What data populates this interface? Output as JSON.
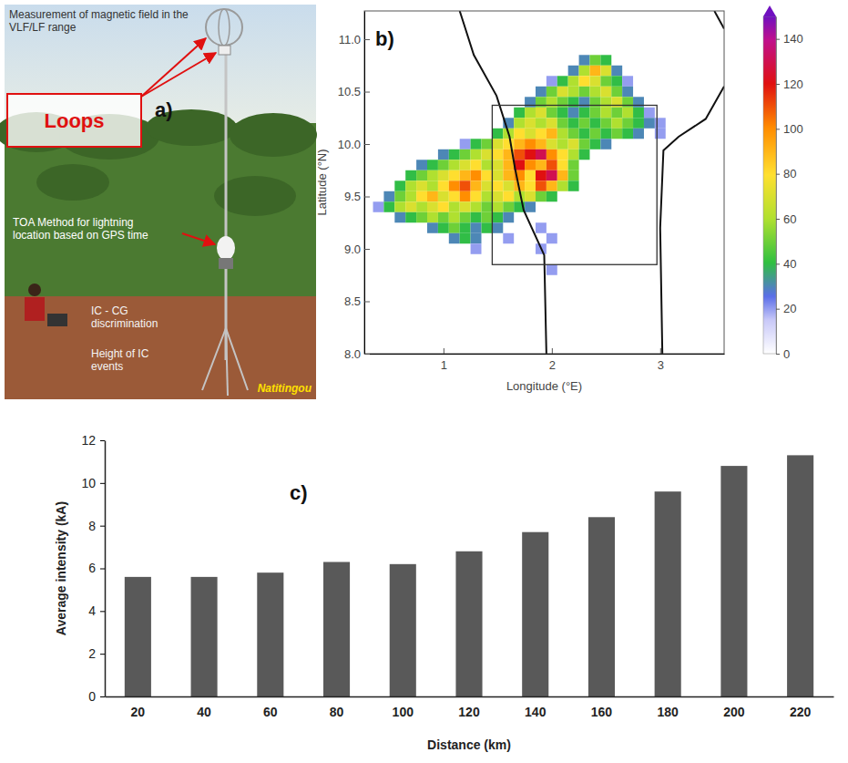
{
  "photo": {
    "panel": "a)",
    "callouts": [
      "Measurement of magnetic field in the VLF/LF range",
      "TOA Method for  lightning location based on GPS time",
      "IC - CG discrimination",
      "Height of IC events"
    ],
    "boxed_label": "Loops",
    "place": "Natitingou"
  },
  "chart_data": [
    {
      "type": "heatmap",
      "panel": "b)",
      "xlabel": "Longitude (°E)",
      "ylabel": "Latitude (°N)",
      "xlim": [
        0.27,
        3.59
      ],
      "ylim": [
        8.0,
        11.27
      ],
      "xticks": [
        1,
        2,
        3
      ],
      "yticks": [
        {
          "value": 8,
          "label": "8.0"
        },
        8.5,
        {
          "value": 9,
          "label": "9.0"
        },
        9.5,
        {
          "value": 10,
          "label": "10.0"
        },
        10.5,
        {
          "value": 11,
          "label": "11.0"
        }
      ],
      "cell_size": 0.1,
      "cells": [
        [
          2.3,
          10.8,
          30
        ],
        [
          2.4,
          10.8,
          50
        ],
        [
          2.5,
          10.8,
          40
        ],
        [
          2.2,
          10.7,
          30
        ],
        [
          2.3,
          10.7,
          60
        ],
        [
          2.4,
          10.7,
          90
        ],
        [
          2.5,
          10.7,
          70
        ],
        [
          2.6,
          10.7,
          30
        ],
        [
          2.0,
          10.6,
          20
        ],
        [
          2.1,
          10.6,
          40
        ],
        [
          2.2,
          10.6,
          60
        ],
        [
          2.3,
          10.6,
          80
        ],
        [
          2.4,
          10.6,
          70
        ],
        [
          2.5,
          10.6,
          50
        ],
        [
          2.6,
          10.6,
          40
        ],
        [
          2.7,
          10.6,
          20
        ],
        [
          1.9,
          10.5,
          30
        ],
        [
          2.0,
          10.5,
          50
        ],
        [
          2.1,
          10.5,
          70
        ],
        [
          2.2,
          10.5,
          60
        ],
        [
          2.3,
          10.5,
          50
        ],
        [
          2.4,
          10.5,
          60
        ],
        [
          2.5,
          10.5,
          70
        ],
        [
          2.6,
          10.5,
          50
        ],
        [
          2.7,
          10.5,
          30
        ],
        [
          1.8,
          10.4,
          30
        ],
        [
          1.9,
          10.4,
          50
        ],
        [
          2.0,
          10.4,
          60
        ],
        [
          2.1,
          10.4,
          50
        ],
        [
          2.2,
          10.4,
          40
        ],
        [
          2.3,
          10.4,
          30
        ],
        [
          2.4,
          10.4,
          50
        ],
        [
          2.5,
          10.4,
          60
        ],
        [
          2.6,
          10.4,
          70
        ],
        [
          2.7,
          10.4,
          50
        ],
        [
          2.8,
          10.4,
          30
        ],
        [
          1.7,
          10.3,
          40
        ],
        [
          1.8,
          10.3,
          60
        ],
        [
          1.9,
          10.3,
          70
        ],
        [
          2.0,
          10.3,
          50
        ],
        [
          2.1,
          10.3,
          40
        ],
        [
          2.2,
          10.3,
          30
        ],
        [
          2.3,
          10.3,
          40
        ],
        [
          2.4,
          10.3,
          50
        ],
        [
          2.5,
          10.3,
          60
        ],
        [
          2.6,
          10.3,
          50
        ],
        [
          2.7,
          10.3,
          60
        ],
        [
          2.8,
          10.3,
          40
        ],
        [
          2.9,
          10.3,
          20
        ],
        [
          1.6,
          10.2,
          30
        ],
        [
          1.7,
          10.2,
          60
        ],
        [
          1.8,
          10.2,
          70
        ],
        [
          1.9,
          10.2,
          60
        ],
        [
          2.0,
          10.2,
          70
        ],
        [
          2.1,
          10.2,
          50
        ],
        [
          2.2,
          10.2,
          40
        ],
        [
          2.3,
          10.2,
          50
        ],
        [
          2.4,
          10.2,
          40
        ],
        [
          2.5,
          10.2,
          50
        ],
        [
          2.6,
          10.2,
          60
        ],
        [
          2.7,
          10.2,
          50
        ],
        [
          2.8,
          10.2,
          40
        ],
        [
          2.9,
          10.2,
          30
        ],
        [
          3.0,
          10.2,
          20
        ],
        [
          1.5,
          10.1,
          40
        ],
        [
          1.6,
          10.1,
          60
        ],
        [
          1.7,
          10.1,
          80
        ],
        [
          1.8,
          10.1,
          70
        ],
        [
          1.9,
          10.1,
          80
        ],
        [
          2.0,
          10.1,
          90
        ],
        [
          2.1,
          10.1,
          60
        ],
        [
          2.2,
          10.1,
          50
        ],
        [
          2.3,
          10.1,
          40
        ],
        [
          2.4,
          10.1,
          50
        ],
        [
          2.5,
          10.1,
          40
        ],
        [
          2.6,
          10.1,
          50
        ],
        [
          2.7,
          10.1,
          40
        ],
        [
          2.8,
          10.1,
          30
        ],
        [
          3.0,
          10.1,
          20
        ],
        [
          1.2,
          10.0,
          20
        ],
        [
          1.3,
          10.0,
          40
        ],
        [
          1.4,
          10.0,
          50
        ],
        [
          1.5,
          10.0,
          70
        ],
        [
          1.6,
          10.0,
          80
        ],
        [
          1.7,
          10.0,
          90
        ],
        [
          1.8,
          10.0,
          100
        ],
        [
          1.9,
          10.0,
          90
        ],
        [
          2.0,
          10.0,
          70
        ],
        [
          2.1,
          10.0,
          60
        ],
        [
          2.2,
          10.0,
          70
        ],
        [
          2.3,
          10.0,
          50
        ],
        [
          2.4,
          10.0,
          40
        ],
        [
          2.5,
          10.0,
          30
        ],
        [
          1.0,
          9.9,
          30
        ],
        [
          1.1,
          9.9,
          40
        ],
        [
          1.2,
          9.9,
          50
        ],
        [
          1.3,
          9.9,
          60
        ],
        [
          1.4,
          9.9,
          70
        ],
        [
          1.5,
          9.9,
          80
        ],
        [
          1.6,
          9.9,
          90
        ],
        [
          1.7,
          9.9,
          110
        ],
        [
          1.8,
          9.9,
          120
        ],
        [
          1.9,
          9.9,
          130
        ],
        [
          2.0,
          9.9,
          100
        ],
        [
          2.1,
          9.9,
          80
        ],
        [
          2.2,
          9.9,
          60
        ],
        [
          2.3,
          9.9,
          40
        ],
        [
          0.8,
          9.8,
          30
        ],
        [
          0.9,
          9.8,
          40
        ],
        [
          1.0,
          9.8,
          50
        ],
        [
          1.1,
          9.8,
          60
        ],
        [
          1.2,
          9.8,
          70
        ],
        [
          1.3,
          9.8,
          80
        ],
        [
          1.4,
          9.8,
          60
        ],
        [
          1.5,
          9.8,
          70
        ],
        [
          1.6,
          9.8,
          90
        ],
        [
          1.7,
          9.8,
          120
        ],
        [
          1.8,
          9.8,
          100
        ],
        [
          1.9,
          9.8,
          90
        ],
        [
          2.0,
          9.8,
          110
        ],
        [
          2.1,
          9.8,
          80
        ],
        [
          2.2,
          9.8,
          50
        ],
        [
          0.7,
          9.7,
          40
        ],
        [
          0.8,
          9.7,
          50
        ],
        [
          0.9,
          9.7,
          60
        ],
        [
          1.0,
          9.7,
          70
        ],
        [
          1.1,
          9.7,
          80
        ],
        [
          1.2,
          9.7,
          90
        ],
        [
          1.3,
          9.7,
          100
        ],
        [
          1.4,
          9.7,
          80
        ],
        [
          1.5,
          9.7,
          70
        ],
        [
          1.6,
          9.7,
          90
        ],
        [
          1.7,
          9.7,
          100
        ],
        [
          1.8,
          9.7,
          80
        ],
        [
          1.9,
          9.7,
          120
        ],
        [
          2.0,
          9.7,
          130
        ],
        [
          2.1,
          9.7,
          90
        ],
        [
          2.2,
          9.7,
          50
        ],
        [
          0.6,
          9.6,
          40
        ],
        [
          0.7,
          9.6,
          60
        ],
        [
          0.8,
          9.6,
          70
        ],
        [
          0.9,
          9.6,
          60
        ],
        [
          1.0,
          9.6,
          80
        ],
        [
          1.1,
          9.6,
          100
        ],
        [
          1.2,
          9.6,
          110
        ],
        [
          1.3,
          9.6,
          90
        ],
        [
          1.4,
          9.6,
          70
        ],
        [
          1.5,
          9.6,
          80
        ],
        [
          1.6,
          9.6,
          70
        ],
        [
          1.7,
          9.6,
          90
        ],
        [
          1.8,
          9.6,
          80
        ],
        [
          1.9,
          9.6,
          110
        ],
        [
          2.0,
          9.6,
          90
        ],
        [
          2.1,
          9.6,
          60
        ],
        [
          2.2,
          9.6,
          40
        ],
        [
          0.5,
          9.5,
          30
        ],
        [
          0.6,
          9.5,
          50
        ],
        [
          0.7,
          9.5,
          60
        ],
        [
          0.8,
          9.5,
          80
        ],
        [
          0.9,
          9.5,
          90
        ],
        [
          1.0,
          9.5,
          70
        ],
        [
          1.1,
          9.5,
          80
        ],
        [
          1.2,
          9.5,
          100
        ],
        [
          1.3,
          9.5,
          80
        ],
        [
          1.4,
          9.5,
          60
        ],
        [
          1.5,
          9.5,
          70
        ],
        [
          1.6,
          9.5,
          80
        ],
        [
          1.7,
          9.5,
          60
        ],
        [
          1.8,
          9.5,
          70
        ],
        [
          1.9,
          9.5,
          50
        ],
        [
          2.0,
          9.5,
          40
        ],
        [
          0.4,
          9.4,
          20
        ],
        [
          0.5,
          9.4,
          40
        ],
        [
          0.6,
          9.4,
          60
        ],
        [
          0.7,
          9.4,
          70
        ],
        [
          0.8,
          9.4,
          60
        ],
        [
          0.9,
          9.4,
          70
        ],
        [
          1.0,
          9.4,
          80
        ],
        [
          1.1,
          9.4,
          60
        ],
        [
          1.2,
          9.4,
          70
        ],
        [
          1.3,
          9.4,
          60
        ],
        [
          1.4,
          9.4,
          50
        ],
        [
          1.5,
          9.4,
          60
        ],
        [
          1.6,
          9.4,
          50
        ],
        [
          1.7,
          9.4,
          40
        ],
        [
          1.8,
          9.4,
          30
        ],
        [
          0.6,
          9.3,
          30
        ],
        [
          0.7,
          9.3,
          40
        ],
        [
          0.8,
          9.3,
          50
        ],
        [
          0.9,
          9.3,
          60
        ],
        [
          1.0,
          9.3,
          50
        ],
        [
          1.1,
          9.3,
          60
        ],
        [
          1.2,
          9.3,
          50
        ],
        [
          1.3,
          9.3,
          40
        ],
        [
          1.4,
          9.3,
          50
        ],
        [
          1.5,
          9.3,
          40
        ],
        [
          1.6,
          9.3,
          30
        ],
        [
          0.9,
          9.2,
          30
        ],
        [
          1.0,
          9.2,
          40
        ],
        [
          1.1,
          9.2,
          50
        ],
        [
          1.2,
          9.2,
          40
        ],
        [
          1.3,
          9.2,
          30
        ],
        [
          1.4,
          9.2,
          40
        ],
        [
          1.5,
          9.2,
          30
        ],
        [
          1.9,
          9.2,
          20
        ],
        [
          1.1,
          9.1,
          30
        ],
        [
          1.2,
          9.1,
          40
        ],
        [
          1.3,
          9.1,
          30
        ],
        [
          1.6,
          9.1,
          20
        ],
        [
          2.0,
          9.1,
          20
        ],
        [
          1.3,
          9.0,
          20
        ],
        [
          1.9,
          9.0,
          20
        ],
        [
          2.0,
          8.8,
          20
        ]
      ],
      "colorbar": {
        "range": [
          0,
          150
        ],
        "ticks": [
          0,
          20,
          40,
          60,
          80,
          100,
          120,
          140
        ]
      },
      "borders": [
        [
          [
            1.15,
            11.27
          ],
          [
            1.28,
            10.85
          ],
          [
            1.49,
            10.46
          ],
          [
            1.61,
            10.07
          ],
          [
            1.66,
            9.77
          ],
          [
            1.74,
            9.37
          ],
          [
            1.93,
            8.94
          ],
          [
            1.95,
            8.0
          ]
        ],
        [
          [
            3.59,
            10.55
          ],
          [
            3.42,
            10.24
          ],
          [
            3.17,
            10.07
          ],
          [
            3.03,
            9.94
          ],
          [
            3.0,
            9.2
          ],
          [
            3.02,
            8.0
          ]
        ],
        [
          [
            3.5,
            11.27
          ],
          [
            3.59,
            11.1
          ]
        ]
      ],
      "box": {
        "lon": [
          1.45,
          2.97
        ],
        "lat": [
          8.85,
          10.37
        ]
      }
    },
    {
      "type": "bar",
      "panel": "c)",
      "xlabel": "Distance (km)",
      "ylabel": "Average intensity (kA)",
      "categories": [
        20,
        40,
        60,
        80,
        100,
        120,
        140,
        160,
        180,
        200,
        220
      ],
      "values": [
        5.6,
        5.6,
        5.8,
        6.3,
        6.2,
        6.8,
        7.7,
        8.4,
        9.6,
        10.8,
        11.3
      ],
      "color": "#595959",
      "ylim": [
        0,
        12
      ],
      "yticks": [
        0,
        2,
        4,
        6,
        8,
        10,
        12
      ],
      "grid": false
    }
  ]
}
